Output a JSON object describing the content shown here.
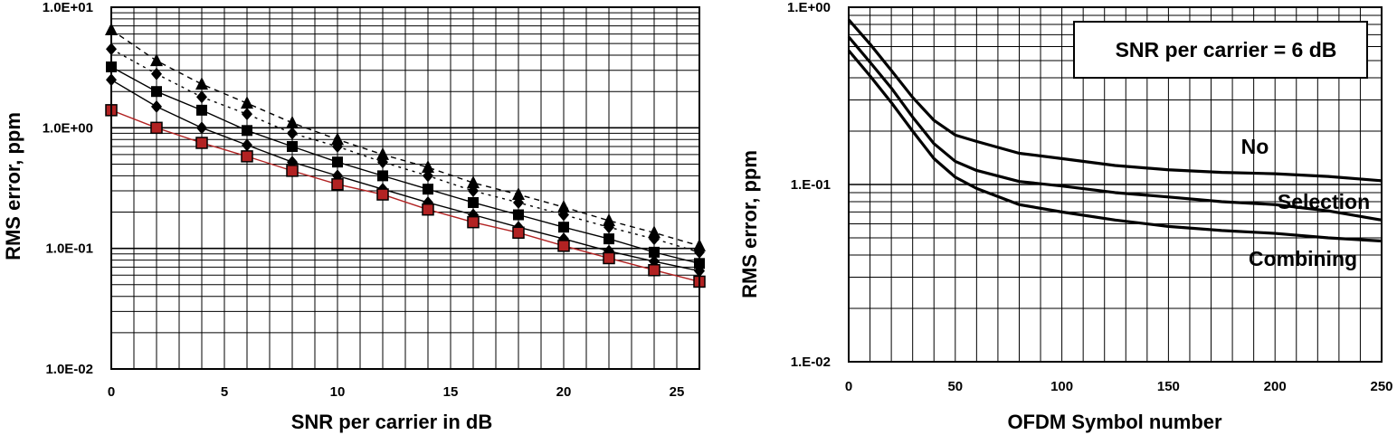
{
  "chart_data": [
    {
      "type": "scatter",
      "xlabel": "SNR per carrier in dB",
      "ylabel": "RMS error, ppm",
      "x_ticks": [
        "0",
        "5",
        "10",
        "15",
        "20",
        "25"
      ],
      "y_ticks": [
        "1.0E-02",
        "1.0E-01",
        "1.0E+00",
        "1.0E+01"
      ],
      "xlim": [
        0,
        26
      ],
      "ylim": [
        0.01,
        10
      ],
      "y_scale": "log",
      "grid": true,
      "x": [
        0,
        2,
        4,
        6,
        8,
        10,
        12,
        14,
        16,
        18,
        20,
        22,
        24,
        26
      ],
      "series": [
        {
          "marker": "triangle",
          "color": "#000000",
          "values": [
            6.5,
            3.6,
            2.3,
            1.6,
            1.1,
            0.8,
            0.6,
            0.47,
            0.35,
            0.28,
            0.22,
            0.17,
            0.135,
            0.105
          ]
        },
        {
          "marker": "diamond",
          "color": "#000000",
          "values": [
            4.5,
            2.8,
            1.8,
            1.3,
            0.9,
            0.7,
            0.52,
            0.4,
            0.3,
            0.24,
            0.19,
            0.15,
            0.12,
            0.093
          ]
        },
        {
          "marker": "square",
          "color": "#000000",
          "values": [
            3.2,
            2.0,
            1.4,
            0.95,
            0.7,
            0.52,
            0.4,
            0.31,
            0.24,
            0.19,
            0.15,
            0.12,
            0.093,
            0.075
          ]
        },
        {
          "marker": "diamond",
          "color": "#000000",
          "values": [
            2.5,
            1.5,
            1.0,
            0.72,
            0.52,
            0.4,
            0.31,
            0.24,
            0.19,
            0.15,
            0.12,
            0.095,
            0.078,
            0.065
          ]
        },
        {
          "marker": "square",
          "color": "#b22222",
          "values": [
            1.4,
            1.0,
            0.75,
            0.58,
            0.44,
            0.34,
            0.28,
            0.21,
            0.165,
            0.135,
            0.105,
            0.083,
            0.066,
            0.053
          ]
        }
      ]
    },
    {
      "type": "line",
      "xlabel": "OFDM Symbol number",
      "ylabel": "RMS error, ppm",
      "x_ticks": [
        "0",
        "50",
        "100",
        "150",
        "200",
        "250"
      ],
      "y_ticks": [
        "1.E-02",
        "1.E-01",
        "1.E+00"
      ],
      "xlim": [
        0,
        250
      ],
      "ylim": [
        0.01,
        1
      ],
      "y_scale": "log",
      "grid": true,
      "annotation": "SNR per carrier = 6 dB",
      "x": [
        0,
        10,
        20,
        30,
        40,
        50,
        60,
        80,
        100,
        125,
        150,
        175,
        200,
        225,
        250
      ],
      "series": [
        {
          "name": "No",
          "values": [
            0.85,
            0.62,
            0.44,
            0.31,
            0.23,
            0.19,
            0.175,
            0.15,
            0.14,
            0.128,
            0.121,
            0.117,
            0.115,
            0.111,
            0.105
          ]
        },
        {
          "name": "Selection",
          "values": [
            0.68,
            0.49,
            0.35,
            0.24,
            0.17,
            0.135,
            0.12,
            0.104,
            0.098,
            0.09,
            0.085,
            0.08,
            0.077,
            0.071,
            0.063
          ]
        },
        {
          "name": "Combining",
          "values": [
            0.57,
            0.41,
            0.29,
            0.2,
            0.14,
            0.11,
            0.095,
            0.077,
            0.07,
            0.063,
            0.058,
            0.055,
            0.053,
            0.05,
            0.048
          ]
        }
      ]
    }
  ]
}
